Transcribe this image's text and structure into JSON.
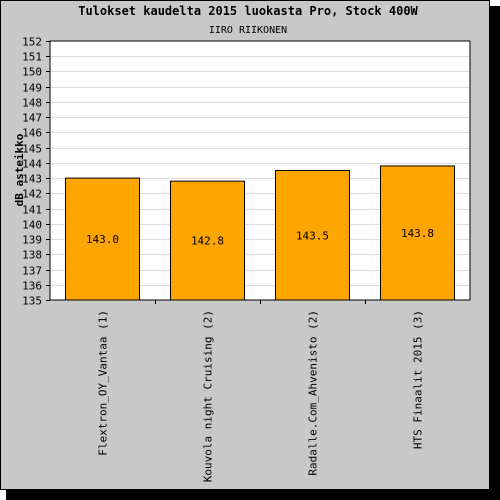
{
  "chart_data": {
    "type": "bar",
    "title": "Tulokset kaudelta 2015 luokasta Pro, Stock 400W",
    "subtitle": "IIRO RIIKONEN",
    "xlabel": "",
    "ylabel": "dB asteikko",
    "categories": [
      "Flextron_OY_Vantaa (1)",
      "Kouvola night Cruising (2)",
      "Radalle.Com_Ahvenisto (2)",
      "HTS Finaalit 2015 (3)"
    ],
    "values": [
      143.0,
      142.8,
      143.5,
      143.8
    ],
    "value_labels": [
      "143.0",
      "142.8",
      "143.5",
      "143.8"
    ],
    "ylim": [
      135,
      152
    ],
    "yticks": [
      135,
      136,
      137,
      138,
      139,
      140,
      141,
      142,
      143,
      144,
      145,
      146,
      147,
      148,
      149,
      150,
      151,
      152
    ],
    "grid": true,
    "legend": "none",
    "colors": {
      "bar": "#ffa500",
      "frame": "#c8c8c8",
      "plot": "#ffffff",
      "grid": "#dcdcdc",
      "text": "#000000"
    }
  }
}
